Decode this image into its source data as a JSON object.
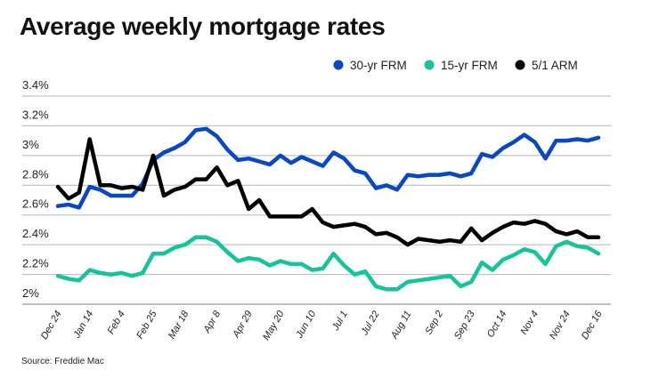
{
  "chart_data": {
    "type": "line",
    "title": "Average weekly mortgage rates",
    "source": "Source: Freddie Mac",
    "legend_position": "top-right",
    "grid": true,
    "ylim": [
      2.0,
      3.4
    ],
    "y_ticks": [
      {
        "v": 2.0,
        "label": "2%"
      },
      {
        "v": 2.2,
        "label": "2.2%"
      },
      {
        "v": 2.4,
        "label": "2.4%"
      },
      {
        "v": 2.6,
        "label": "2.6%"
      },
      {
        "v": 2.8,
        "label": "2.8%"
      },
      {
        "v": 3.0,
        "label": "3%"
      },
      {
        "v": 3.2,
        "label": "3.2%"
      },
      {
        "v": 3.4,
        "label": "3.4%"
      }
    ],
    "x_tick_labels": [
      "Dec 24",
      "Jan 14",
      "Feb 4",
      "Feb 25",
      "Mar 18",
      "Apr 8",
      "Apr 29",
      "May 20",
      "Jun 10",
      "Jul 1",
      "Jul 22",
      "Aug 11",
      "Sep 2",
      "Sep 23",
      "Oct 14",
      "Nov 4",
      "Nov 24",
      "Dec 16"
    ],
    "x_tick_every_n_points": 3,
    "series": [
      {
        "name": "30-yr FRM",
        "color": "#0a47c2",
        "values": [
          2.66,
          2.67,
          2.65,
          2.79,
          2.77,
          2.73,
          2.73,
          2.73,
          2.81,
          2.97,
          3.02,
          3.05,
          3.09,
          3.17,
          3.18,
          3.13,
          3.04,
          2.97,
          2.98,
          2.96,
          2.94,
          3.0,
          2.95,
          2.99,
          2.96,
          2.93,
          3.02,
          2.98,
          2.9,
          2.88,
          2.78,
          2.8,
          2.77,
          2.87,
          2.86,
          2.87,
          2.87,
          2.88,
          2.86,
          2.88,
          3.01,
          2.99,
          3.05,
          3.09,
          3.14,
          3.09,
          2.98,
          3.1,
          3.1,
          3.11,
          3.1,
          3.12
        ]
      },
      {
        "name": "15-yr FRM",
        "color": "#14c49a",
        "values": [
          2.19,
          2.17,
          2.16,
          2.23,
          2.21,
          2.2,
          2.21,
          2.19,
          2.21,
          2.34,
          2.34,
          2.38,
          2.4,
          2.45,
          2.45,
          2.42,
          2.35,
          2.29,
          2.31,
          2.3,
          2.26,
          2.29,
          2.27,
          2.27,
          2.23,
          2.24,
          2.34,
          2.26,
          2.2,
          2.22,
          2.12,
          2.1,
          2.1,
          2.15,
          2.16,
          2.17,
          2.18,
          2.19,
          2.12,
          2.15,
          2.28,
          2.23,
          2.3,
          2.33,
          2.37,
          2.35,
          2.27,
          2.39,
          2.42,
          2.39,
          2.38,
          2.34
        ]
      },
      {
        "name": "5/1 ARM",
        "color": "#000000",
        "values": [
          2.79,
          2.71,
          2.75,
          3.11,
          2.8,
          2.8,
          2.78,
          2.79,
          2.77,
          3.0,
          2.73,
          2.77,
          2.79,
          2.84,
          2.84,
          2.92,
          2.8,
          2.83,
          2.64,
          2.7,
          2.59,
          2.59,
          2.59,
          2.59,
          2.64,
          2.55,
          2.52,
          2.53,
          2.54,
          2.52,
          2.47,
          2.48,
          2.45,
          2.4,
          2.44,
          2.43,
          2.42,
          2.43,
          2.42,
          2.51,
          2.43,
          2.48,
          2.52,
          2.55,
          2.54,
          2.56,
          2.54,
          2.49,
          2.47,
          2.49,
          2.45,
          2.45
        ]
      }
    ]
  }
}
